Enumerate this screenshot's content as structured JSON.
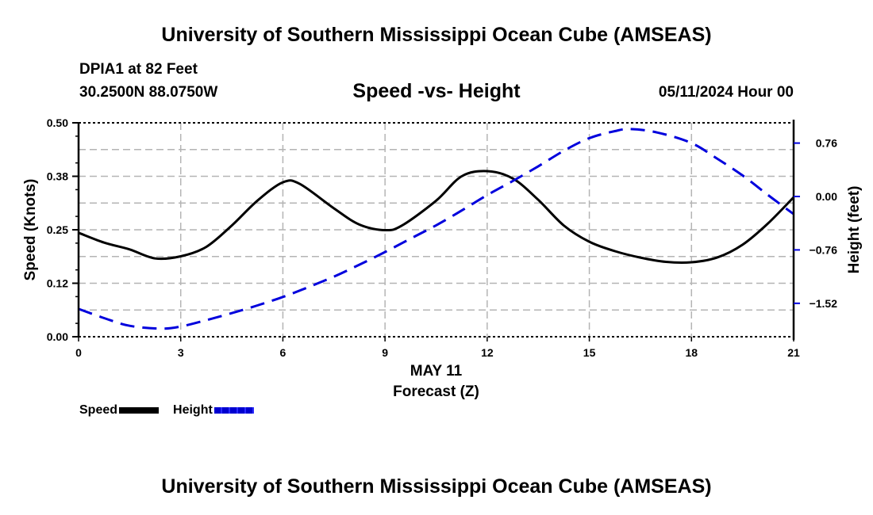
{
  "header": {
    "title": "University of Southern Mississippi Ocean Cube (AMSEAS)",
    "station": "DPIA1 at 82 Feet",
    "coordinates": "30.2500N  88.0750W",
    "subtitle": "Speed -vs- Height",
    "datetime": "05/11/2024 Hour 00"
  },
  "footer": {
    "title": "University of Southern Mississippi Ocean Cube (AMSEAS)"
  },
  "legend": {
    "speed_label": "Speed",
    "height_label": "Height"
  },
  "colors": {
    "speed": "#000000",
    "height": "#0000dd",
    "grid": "#b4b4b4"
  },
  "chart_data": {
    "type": "line",
    "title": "Speed -vs- Height",
    "xlabel": "Forecast (Z)",
    "xlabel_date": "MAY 11",
    "ylabel": "Speed (Knots)",
    "y2label": "Height (feet)",
    "xlim": [
      0,
      21
    ],
    "ylim": [
      0,
      0.5
    ],
    "y2lim": [
      -2.0,
      1.0
    ],
    "x_ticks": [
      "0",
      "3",
      "6",
      "9",
      "12",
      "15",
      "18",
      "21"
    ],
    "x_tick_values": [
      0,
      3,
      6,
      9,
      12,
      15,
      18,
      21
    ],
    "y_ticks": [
      "0.00",
      "0.12",
      "0.25",
      "0.38",
      "0.50"
    ],
    "y_tick_values": [
      0,
      0.125,
      0.25,
      0.375,
      0.5
    ],
    "y2_ticks": [
      "0.76",
      "0.00",
      "−0.76",
      "−1.52"
    ],
    "y2_tick_values": [
      0.76,
      0.0,
      -0.76,
      -1.52
    ],
    "grid": true,
    "legend_position": "bottom-left",
    "series": [
      {
        "name": "Speed",
        "axis": "left",
        "style": "solid",
        "x": [
          0,
          0.75,
          1.5,
          2.25,
          3,
          3.75,
          4.5,
          5.25,
          6,
          6.5,
          7.5,
          8.25,
          9,
          9.5,
          10.5,
          11.25,
          12,
          12.75,
          13.5,
          14.25,
          15,
          15.75,
          16.5,
          17.25,
          18,
          18.75,
          19.5,
          20.25,
          21
        ],
        "values": [
          0.243,
          0.22,
          0.204,
          0.183,
          0.188,
          0.21,
          0.26,
          0.318,
          0.361,
          0.357,
          0.3,
          0.262,
          0.249,
          0.26,
          0.318,
          0.375,
          0.387,
          0.37,
          0.32,
          0.26,
          0.222,
          0.2,
          0.185,
          0.175,
          0.174,
          0.185,
          0.215,
          0.265,
          0.326
        ]
      },
      {
        "name": "Height",
        "axis": "right",
        "style": "dashed",
        "x": [
          0,
          0.75,
          1.5,
          2.4,
          3,
          3.75,
          4.5,
          5.25,
          6,
          6.75,
          7.5,
          8.25,
          9,
          9.75,
          10.5,
          11.25,
          12,
          12.75,
          13.5,
          14.25,
          15,
          15.75,
          16.2,
          17,
          18,
          18.75,
          19.5,
          20.25,
          21
        ],
        "values": [
          -1.6,
          -1.73,
          -1.84,
          -1.88,
          -1.85,
          -1.76,
          -1.66,
          -1.55,
          -1.43,
          -1.29,
          -1.14,
          -0.97,
          -0.79,
          -0.6,
          -0.41,
          -0.2,
          0.02,
          0.22,
          0.43,
          0.65,
          0.83,
          0.93,
          0.96,
          0.91,
          0.76,
          0.54,
          0.3,
          0.02,
          -0.25
        ]
      }
    ]
  }
}
